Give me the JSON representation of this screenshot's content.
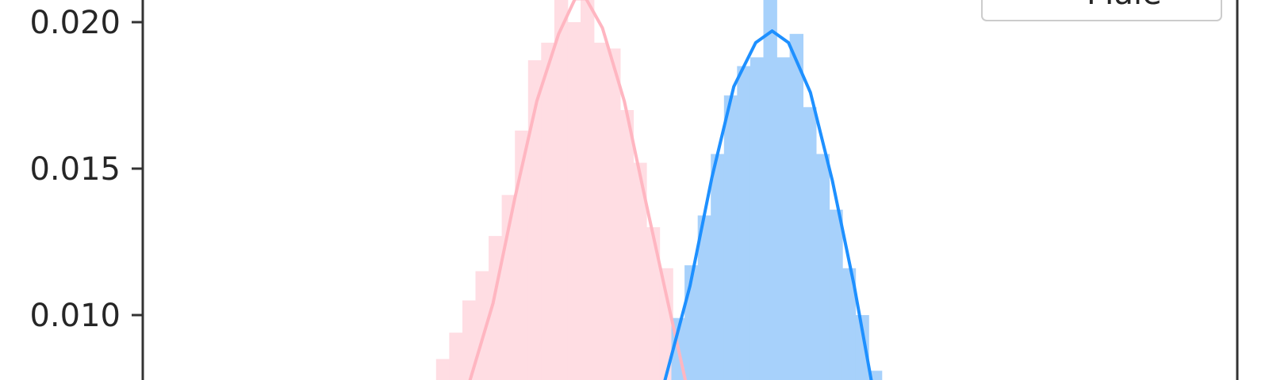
{
  "chart_data": {
    "type": "histogram-kde",
    "title": "",
    "xlabel": "",
    "ylabel": "",
    "ylim_visible": [
      0.0079,
      0.0208
    ],
    "yticks": [
      {
        "value": 0.02,
        "label": "0.020"
      },
      {
        "value": 0.015,
        "label": "0.015"
      },
      {
        "value": 0.01,
        "label": "0.010"
      }
    ],
    "x_range_relative": [
      0,
      1
    ],
    "legend": {
      "placement": "top-right",
      "visible_entries": [
        "Male"
      ]
    },
    "series": [
      {
        "name": "",
        "color": "#FFB6C1",
        "fill": "#FFDDE3",
        "bars": [
          {
            "x": 0.262,
            "y": 0.0074
          },
          {
            "x": 0.274,
            "y": 0.0085
          },
          {
            "x": 0.286,
            "y": 0.0094
          },
          {
            "x": 0.298,
            "y": 0.0105
          },
          {
            "x": 0.31,
            "y": 0.0115
          },
          {
            "x": 0.322,
            "y": 0.0127
          },
          {
            "x": 0.334,
            "y": 0.0141
          },
          {
            "x": 0.346,
            "y": 0.0163
          },
          {
            "x": 0.358,
            "y": 0.0187
          },
          {
            "x": 0.37,
            "y": 0.0193
          },
          {
            "x": 0.382,
            "y": 0.021
          },
          {
            "x": 0.394,
            "y": 0.02
          },
          {
            "x": 0.406,
            "y": 0.021
          },
          {
            "x": 0.418,
            "y": 0.0193
          },
          {
            "x": 0.43,
            "y": 0.0191
          },
          {
            "x": 0.442,
            "y": 0.017
          },
          {
            "x": 0.454,
            "y": 0.0152
          },
          {
            "x": 0.466,
            "y": 0.013
          },
          {
            "x": 0.478,
            "y": 0.0116
          },
          {
            "x": 0.49,
            "y": 0.0092
          },
          {
            "x": 0.502,
            "y": 0.0077
          }
        ],
        "kde": [
          {
            "x": 0.3,
            "y": 0.0079
          },
          {
            "x": 0.32,
            "y": 0.0104
          },
          {
            "x": 0.34,
            "y": 0.014
          },
          {
            "x": 0.36,
            "y": 0.0173
          },
          {
            "x": 0.38,
            "y": 0.0196
          },
          {
            "x": 0.395,
            "y": 0.0208
          },
          {
            "x": 0.405,
            "y": 0.0208
          },
          {
            "x": 0.42,
            "y": 0.0198
          },
          {
            "x": 0.44,
            "y": 0.0173
          },
          {
            "x": 0.46,
            "y": 0.0138
          },
          {
            "x": 0.48,
            "y": 0.0104
          },
          {
            "x": 0.495,
            "y": 0.0079
          }
        ]
      },
      {
        "name": "Male",
        "color": "#1E90FF",
        "fill": "#A7D1FB",
        "bars": [
          {
            "x": 0.465,
            "y": 0.0065
          },
          {
            "x": 0.477,
            "y": 0.0075
          },
          {
            "x": 0.489,
            "y": 0.0099
          },
          {
            "x": 0.501,
            "y": 0.0117
          },
          {
            "x": 0.513,
            "y": 0.0134
          },
          {
            "x": 0.525,
            "y": 0.0155
          },
          {
            "x": 0.537,
            "y": 0.0175
          },
          {
            "x": 0.549,
            "y": 0.0185
          },
          {
            "x": 0.561,
            "y": 0.0188
          },
          {
            "x": 0.573,
            "y": 0.0218
          },
          {
            "x": 0.585,
            "y": 0.0188
          },
          {
            "x": 0.597,
            "y": 0.0196
          },
          {
            "x": 0.609,
            "y": 0.0171
          },
          {
            "x": 0.621,
            "y": 0.0155
          },
          {
            "x": 0.633,
            "y": 0.0136
          },
          {
            "x": 0.645,
            "y": 0.0116
          },
          {
            "x": 0.657,
            "y": 0.01
          },
          {
            "x": 0.669,
            "y": 0.0081
          }
        ],
        "kde": [
          {
            "x": 0.478,
            "y": 0.0079
          },
          {
            "x": 0.5,
            "y": 0.011
          },
          {
            "x": 0.52,
            "y": 0.0147
          },
          {
            "x": 0.54,
            "y": 0.0178
          },
          {
            "x": 0.56,
            "y": 0.0193
          },
          {
            "x": 0.575,
            "y": 0.0197
          },
          {
            "x": 0.59,
            "y": 0.0193
          },
          {
            "x": 0.61,
            "y": 0.0176
          },
          {
            "x": 0.63,
            "y": 0.0146
          },
          {
            "x": 0.65,
            "y": 0.011
          },
          {
            "x": 0.665,
            "y": 0.0079
          }
        ]
      }
    ]
  }
}
